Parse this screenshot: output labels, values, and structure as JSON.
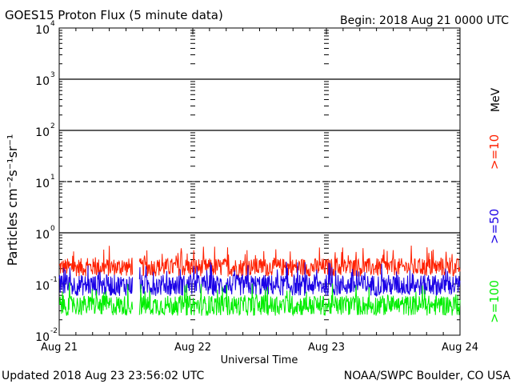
{
  "chart_data": {
    "type": "line",
    "title": "GOES15 Proton Flux (5 minute data)",
    "begin_label": "Begin: 2018 Aug 21 0000 UTC",
    "xlabel": "Universal Time",
    "ylabel": "Particles cm⁻²s⁻¹sr⁻¹",
    "y_unit": "MeV",
    "y_scale": "log",
    "ylim": [
      0.01,
      10000
    ],
    "y_ticks": [
      {
        "value": 10000,
        "mantissa": "10",
        "exp": "4"
      },
      {
        "value": 1000,
        "mantissa": "10",
        "exp": "3"
      },
      {
        "value": 100,
        "mantissa": "10",
        "exp": "2"
      },
      {
        "value": 10,
        "mantissa": "10",
        "exp": "1"
      },
      {
        "value": 1,
        "mantissa": "10",
        "exp": "0"
      },
      {
        "value": 0.1,
        "mantissa": "10",
        "exp": "-1"
      },
      {
        "value": 0.01,
        "mantissa": "10",
        "exp": "-2"
      }
    ],
    "threshold_lines": [
      {
        "value": 1000,
        "style": "solid"
      },
      {
        "value": 100,
        "style": "solid"
      },
      {
        "value": 10,
        "style": "dashed"
      },
      {
        "value": 1,
        "style": "solid"
      }
    ],
    "x_ticks": [
      "Aug 21",
      "Aug 22",
      "Aug 23",
      "Aug 24"
    ],
    "xlim_days": [
      0,
      3
    ],
    "data_gaps": [
      [
        0.55,
        0.6
      ]
    ],
    "series": [
      {
        "name": ">=10",
        "color": "#ff2000",
        "base": 0.2,
        "jitter": [
          0.7,
          1.6
        ]
      },
      {
        "name": ">=50",
        "color": "#1a00e6",
        "base": 0.09,
        "jitter": [
          0.65,
          1.7
        ]
      },
      {
        "name": ">=100",
        "color": "#00ee00",
        "base": 0.04,
        "jitter": [
          0.6,
          1.5
        ]
      }
    ],
    "footer_left": "Updated 2018 Aug 23 23:56:02 UTC",
    "footer_right": "NOAA/SWPC Boulder, CO USA"
  }
}
